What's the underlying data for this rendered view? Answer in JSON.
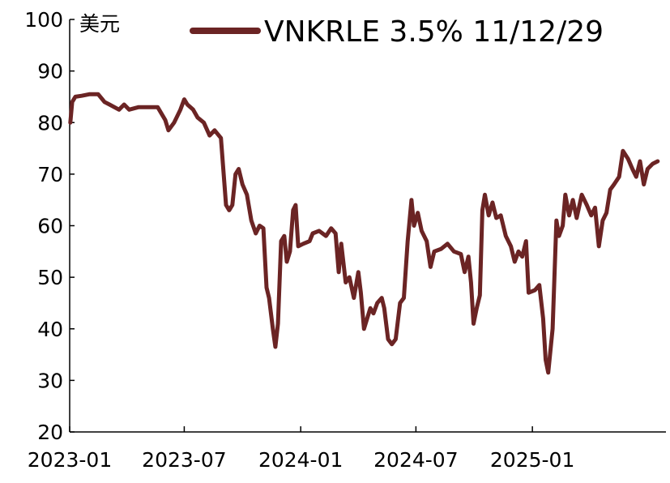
{
  "chart_data": {
    "type": "line",
    "title": "",
    "xlabel": "",
    "ylabel": "",
    "unit_label": "美元",
    "legend_position": "top",
    "grid": false,
    "ylim": [
      20,
      100
    ],
    "xlim": [
      "2023-01-01",
      "2025-07-31"
    ],
    "y_ticks": [
      20,
      30,
      40,
      50,
      60,
      70,
      80,
      90,
      100
    ],
    "x_ticks": [
      {
        "date": "2023-01-01",
        "label": "2023-01"
      },
      {
        "date": "2023-07-01",
        "label": "2023-07"
      },
      {
        "date": "2024-01-01",
        "label": "2024-01"
      },
      {
        "date": "2024-07-01",
        "label": "2024-07"
      },
      {
        "date": "2025-01-01",
        "label": "2025-01"
      }
    ],
    "series": [
      {
        "name": "VNKRLE 3.5% 11/12/29",
        "color": "#6B2424",
        "points": [
          [
            "2023-01-02",
            80.0
          ],
          [
            "2023-01-05",
            84.0
          ],
          [
            "2023-01-10",
            85.0
          ],
          [
            "2023-01-20",
            85.2
          ],
          [
            "2023-02-01",
            85.5
          ],
          [
            "2023-02-15",
            85.5
          ],
          [
            "2023-02-25",
            84.0
          ],
          [
            "2023-03-05",
            83.5
          ],
          [
            "2023-03-20",
            82.5
          ],
          [
            "2023-03-28",
            83.5
          ],
          [
            "2023-04-05",
            82.5
          ],
          [
            "2023-04-20",
            83.0
          ],
          [
            "2023-05-01",
            83.0
          ],
          [
            "2023-05-20",
            83.0
          ],
          [
            "2023-06-01",
            80.5
          ],
          [
            "2023-06-06",
            78.5
          ],
          [
            "2023-06-15",
            80.0
          ],
          [
            "2023-06-25",
            82.5
          ],
          [
            "2023-07-01",
            84.5
          ],
          [
            "2023-07-06",
            83.5
          ],
          [
            "2023-07-15",
            82.5
          ],
          [
            "2023-07-22",
            81.0
          ],
          [
            "2023-08-01",
            80.0
          ],
          [
            "2023-08-10",
            77.5
          ],
          [
            "2023-08-18",
            78.5
          ],
          [
            "2023-08-28",
            77.0
          ],
          [
            "2023-09-05",
            64.0
          ],
          [
            "2023-09-10",
            63.0
          ],
          [
            "2023-09-15",
            64.0
          ],
          [
            "2023-09-20",
            70.0
          ],
          [
            "2023-09-25",
            71.0
          ],
          [
            "2023-10-01",
            68.0
          ],
          [
            "2023-10-08",
            66.0
          ],
          [
            "2023-10-15",
            61.0
          ],
          [
            "2023-10-22",
            58.5
          ],
          [
            "2023-10-28",
            60.0
          ],
          [
            "2023-11-03",
            59.5
          ],
          [
            "2023-11-08",
            48.0
          ],
          [
            "2023-11-12",
            46.0
          ],
          [
            "2023-11-18",
            40.0
          ],
          [
            "2023-11-22",
            36.5
          ],
          [
            "2023-11-26",
            41.0
          ],
          [
            "2023-12-01",
            57.0
          ],
          [
            "2023-12-06",
            58.0
          ],
          [
            "2023-12-10",
            53.0
          ],
          [
            "2023-12-15",
            55.0
          ],
          [
            "2023-12-20",
            63.0
          ],
          [
            "2023-12-24",
            64.0
          ],
          [
            "2023-12-28",
            56.0
          ],
          [
            "2024-01-05",
            56.5
          ],
          [
            "2024-01-15",
            57.0
          ],
          [
            "2024-01-20",
            58.5
          ],
          [
            "2024-01-30",
            59.0
          ],
          [
            "2024-02-10",
            58.0
          ],
          [
            "2024-02-18",
            59.5
          ],
          [
            "2024-02-25",
            58.5
          ],
          [
            "2024-03-01",
            51.0
          ],
          [
            "2024-03-05",
            56.5
          ],
          [
            "2024-03-12",
            49.0
          ],
          [
            "2024-03-18",
            50.0
          ],
          [
            "2024-03-25",
            46.0
          ],
          [
            "2024-04-01",
            51.0
          ],
          [
            "2024-04-05",
            47.0
          ],
          [
            "2024-04-10",
            40.0
          ],
          [
            "2024-04-15",
            42.0
          ],
          [
            "2024-04-20",
            44.0
          ],
          [
            "2024-04-25",
            43.0
          ],
          [
            "2024-05-01",
            45.0
          ],
          [
            "2024-05-08",
            46.0
          ],
          [
            "2024-05-12",
            44.0
          ],
          [
            "2024-05-18",
            38.0
          ],
          [
            "2024-05-24",
            37.0
          ],
          [
            "2024-05-30",
            38.0
          ],
          [
            "2024-06-06",
            45.0
          ],
          [
            "2024-06-12",
            46.0
          ],
          [
            "2024-06-18",
            57.0
          ],
          [
            "2024-06-24",
            65.0
          ],
          [
            "2024-06-28",
            60.0
          ],
          [
            "2024-07-04",
            62.5
          ],
          [
            "2024-07-10",
            59.0
          ],
          [
            "2024-07-18",
            57.0
          ],
          [
            "2024-07-24",
            52.0
          ],
          [
            "2024-07-30",
            55.0
          ],
          [
            "2024-08-10",
            55.5
          ],
          [
            "2024-08-20",
            56.5
          ],
          [
            "2024-08-30",
            55.0
          ],
          [
            "2024-09-10",
            54.5
          ],
          [
            "2024-09-16",
            51.0
          ],
          [
            "2024-09-22",
            54.0
          ],
          [
            "2024-09-26",
            49.0
          ],
          [
            "2024-09-30",
            41.0
          ],
          [
            "2024-10-05",
            44.0
          ],
          [
            "2024-10-10",
            46.5
          ],
          [
            "2024-10-14",
            63.0
          ],
          [
            "2024-10-18",
            66.0
          ],
          [
            "2024-10-24",
            62.0
          ],
          [
            "2024-10-30",
            64.5
          ],
          [
            "2024-11-05",
            61.5
          ],
          [
            "2024-11-12",
            62.0
          ],
          [
            "2024-11-20",
            58.0
          ],
          [
            "2024-11-28",
            56.0
          ],
          [
            "2024-12-04",
            53.0
          ],
          [
            "2024-12-10",
            55.0
          ],
          [
            "2024-12-16",
            54.0
          ],
          [
            "2024-12-22",
            57.0
          ],
          [
            "2024-12-26",
            47.0
          ],
          [
            "2025-01-05",
            47.5
          ],
          [
            "2025-01-12",
            48.5
          ],
          [
            "2025-01-18",
            42.0
          ],
          [
            "2025-01-22",
            34.0
          ],
          [
            "2025-01-26",
            31.5
          ],
          [
            "2025-02-02",
            40.0
          ],
          [
            "2025-02-08",
            61.0
          ],
          [
            "2025-02-12",
            58.0
          ],
          [
            "2025-02-18",
            60.0
          ],
          [
            "2025-02-22",
            66.0
          ],
          [
            "2025-02-28",
            62.0
          ],
          [
            "2025-03-06",
            65.0
          ],
          [
            "2025-03-12",
            61.5
          ],
          [
            "2025-03-20",
            66.0
          ],
          [
            "2025-03-28",
            64.0
          ],
          [
            "2025-04-04",
            62.0
          ],
          [
            "2025-04-10",
            63.5
          ],
          [
            "2025-04-16",
            56.0
          ],
          [
            "2025-04-22",
            61.0
          ],
          [
            "2025-04-28",
            62.5
          ],
          [
            "2025-05-04",
            67.0
          ],
          [
            "2025-05-10",
            68.0
          ],
          [
            "2025-05-18",
            69.5
          ],
          [
            "2025-05-24",
            74.5
          ],
          [
            "2025-06-01",
            73.0
          ],
          [
            "2025-06-08",
            71.0
          ],
          [
            "2025-06-14",
            69.5
          ],
          [
            "2025-06-20",
            72.5
          ],
          [
            "2025-06-26",
            68.0
          ],
          [
            "2025-07-02",
            71.0
          ],
          [
            "2025-07-10",
            72.0
          ],
          [
            "2025-07-18",
            72.5
          ]
        ]
      }
    ]
  }
}
